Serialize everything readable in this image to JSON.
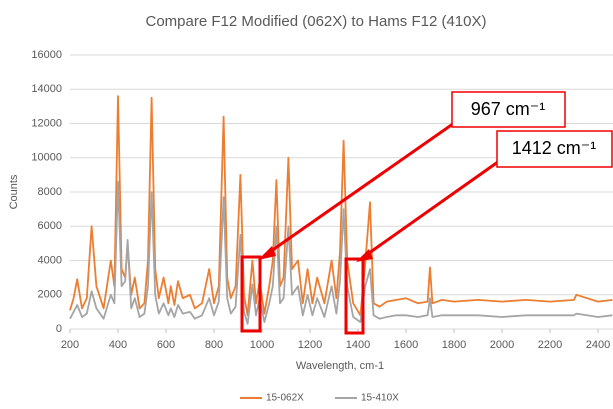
{
  "chart_data": {
    "type": "line",
    "title": "Compare F12 Modified (062X) to Hams F12 (410X)",
    "x_label": "Wavelength, cm-1",
    "y_label": "Counts",
    "x": [
      200,
      215,
      230,
      250,
      270,
      290,
      310,
      340,
      370,
      385,
      400,
      415,
      430,
      440,
      455,
      470,
      490,
      510,
      525,
      540,
      555,
      570,
      590,
      610,
      620,
      635,
      650,
      670,
      700,
      720,
      750,
      780,
      800,
      820,
      840,
      855,
      870,
      890,
      910,
      925,
      940,
      960,
      975,
      990,
      1010,
      1030,
      1045,
      1060,
      1075,
      1090,
      1110,
      1125,
      1150,
      1170,
      1190,
      1210,
      1230,
      1260,
      1290,
      1310,
      1325,
      1340,
      1355,
      1380,
      1410,
      1430,
      1450,
      1465,
      1490,
      1520,
      1560,
      1600,
      1650,
      1690,
      1700,
      1710,
      1750,
      1800,
      1900,
      2000,
      2100,
      2200,
      2300,
      2310,
      2400,
      2460
    ],
    "series": [
      {
        "name": "15-062X",
        "color": "#ed7d31",
        "values": [
          1100,
          1800,
          2900,
          1200,
          1800,
          6000,
          2500,
          1200,
          4000,
          2500,
          13600,
          3500,
          3000,
          5000,
          2000,
          3000,
          1200,
          1500,
          4000,
          13500,
          3500,
          1800,
          3000,
          1500,
          2500,
          1400,
          2800,
          1800,
          2000,
          1200,
          1500,
          3500,
          1500,
          2500,
          12400,
          3000,
          1800,
          2500,
          9000,
          2000,
          800,
          4000,
          1500,
          2800,
          900,
          2500,
          4000,
          8700,
          2500,
          3000,
          10000,
          3500,
          4000,
          1500,
          3500,
          1500,
          3000,
          1500,
          4000,
          1800,
          4500,
          11000,
          4000,
          1500,
          800,
          3800,
          7400,
          1500,
          1300,
          1600,
          1700,
          1800,
          1500,
          1600,
          3600,
          1500,
          1700,
          1600,
          1700,
          1600,
          1700,
          1600,
          1700,
          2000,
          1600,
          1700
        ]
      },
      {
        "name": "15-410X",
        "color": "#a5a5a5",
        "values": [
          600,
          1000,
          1400,
          700,
          900,
          2200,
          1200,
          600,
          2000,
          1500,
          8600,
          2500,
          2800,
          5200,
          1200,
          1800,
          700,
          900,
          2500,
          8000,
          2000,
          900,
          1500,
          800,
          1200,
          700,
          1400,
          900,
          1000,
          600,
          800,
          1800,
          800,
          1600,
          7700,
          1800,
          900,
          1300,
          5500,
          1000,
          300,
          2600,
          800,
          1800,
          400,
          1500,
          2500,
          6000,
          1500,
          1800,
          6000,
          2000,
          2500,
          800,
          2000,
          800,
          1800,
          700,
          2500,
          900,
          2800,
          7000,
          2500,
          700,
          400,
          2500,
          3500,
          800,
          600,
          700,
          800,
          800,
          700,
          800,
          1800,
          700,
          800,
          800,
          800,
          700,
          800,
          800,
          800,
          900,
          700,
          800
        ]
      }
    ],
    "xlim": [
      200,
      2460
    ],
    "xticks": [
      200,
      400,
      600,
      800,
      1000,
      1200,
      1400,
      1600,
      1800,
      2000,
      2200,
      2400
    ],
    "ylim": [
      0,
      16000
    ],
    "yticks": [
      0,
      2000,
      4000,
      6000,
      8000,
      10000,
      12000,
      14000,
      16000
    ],
    "grid": true,
    "legend": "bottom",
    "annotations": [
      "967 cm⁻¹",
      "1412 cm⁻¹"
    ]
  }
}
